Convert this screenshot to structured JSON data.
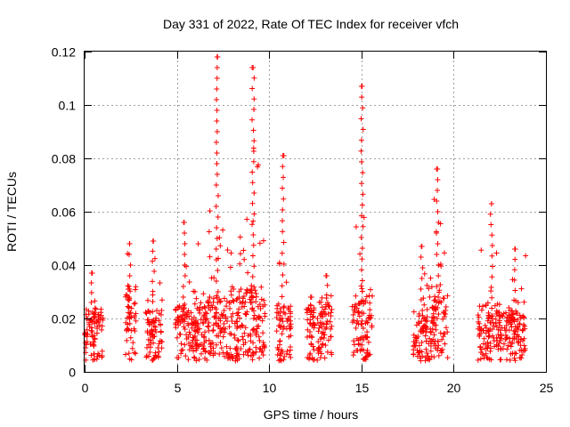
{
  "chart_data": {
    "type": "scatter",
    "title": "Day 331 of 2022, Rate Of TEC Index for receiver vfch",
    "xlabel": "GPS time / hours",
    "ylabel": "ROTI / TECUs",
    "xlim": [
      0,
      25
    ],
    "ylim": [
      0,
      0.12
    ],
    "xticks": [
      0,
      5,
      10,
      15,
      20,
      25
    ],
    "xtick_labels": [
      "0",
      "5",
      "10",
      "15",
      "20",
      "25"
    ],
    "yticks": [
      0,
      0.02,
      0.04,
      0.06,
      0.08,
      0.1,
      0.12
    ],
    "ytick_labels": [
      "0",
      "0.02",
      "0.04",
      "0.06",
      "0.08",
      "0.1",
      "0.12"
    ],
    "grid": true,
    "marker": "+",
    "color": "#ff0000",
    "clusters": [
      {
        "x_start": 0.0,
        "x_end": 1.0,
        "y_typical": 0.015,
        "y_max": 0.037
      },
      {
        "x_start": 2.2,
        "x_end": 2.8,
        "y_typical": 0.02,
        "y_max": 0.048
      },
      {
        "x_start": 3.3,
        "x_end": 4.2,
        "y_typical": 0.015,
        "y_max": 0.049
      },
      {
        "x_start": 4.9,
        "x_end": 6.5,
        "y_typical": 0.016,
        "y_max": 0.056
      },
      {
        "x_start": 6.5,
        "x_end": 8.3,
        "y_typical": 0.018,
        "y_max": 0.118
      },
      {
        "x_start": 8.3,
        "x_end": 9.8,
        "y_typical": 0.02,
        "y_max": 0.114
      },
      {
        "x_start": 10.4,
        "x_end": 11.2,
        "y_typical": 0.016,
        "y_max": 0.081
      },
      {
        "x_start": 12.0,
        "x_end": 12.5,
        "y_typical": 0.015,
        "y_max": 0.028
      },
      {
        "x_start": 12.6,
        "x_end": 13.4,
        "y_typical": 0.018,
        "y_max": 0.036
      },
      {
        "x_start": 14.5,
        "x_end": 15.6,
        "y_typical": 0.018,
        "y_max": 0.107
      },
      {
        "x_start": 17.8,
        "x_end": 18.6,
        "y_typical": 0.015,
        "y_max": 0.047
      },
      {
        "x_start": 18.6,
        "x_end": 19.7,
        "y_typical": 0.02,
        "y_max": 0.076
      },
      {
        "x_start": 21.3,
        "x_end": 22.6,
        "y_typical": 0.016,
        "y_max": 0.063
      },
      {
        "x_start": 22.6,
        "x_end": 23.9,
        "y_typical": 0.015,
        "y_max": 0.046
      }
    ]
  }
}
